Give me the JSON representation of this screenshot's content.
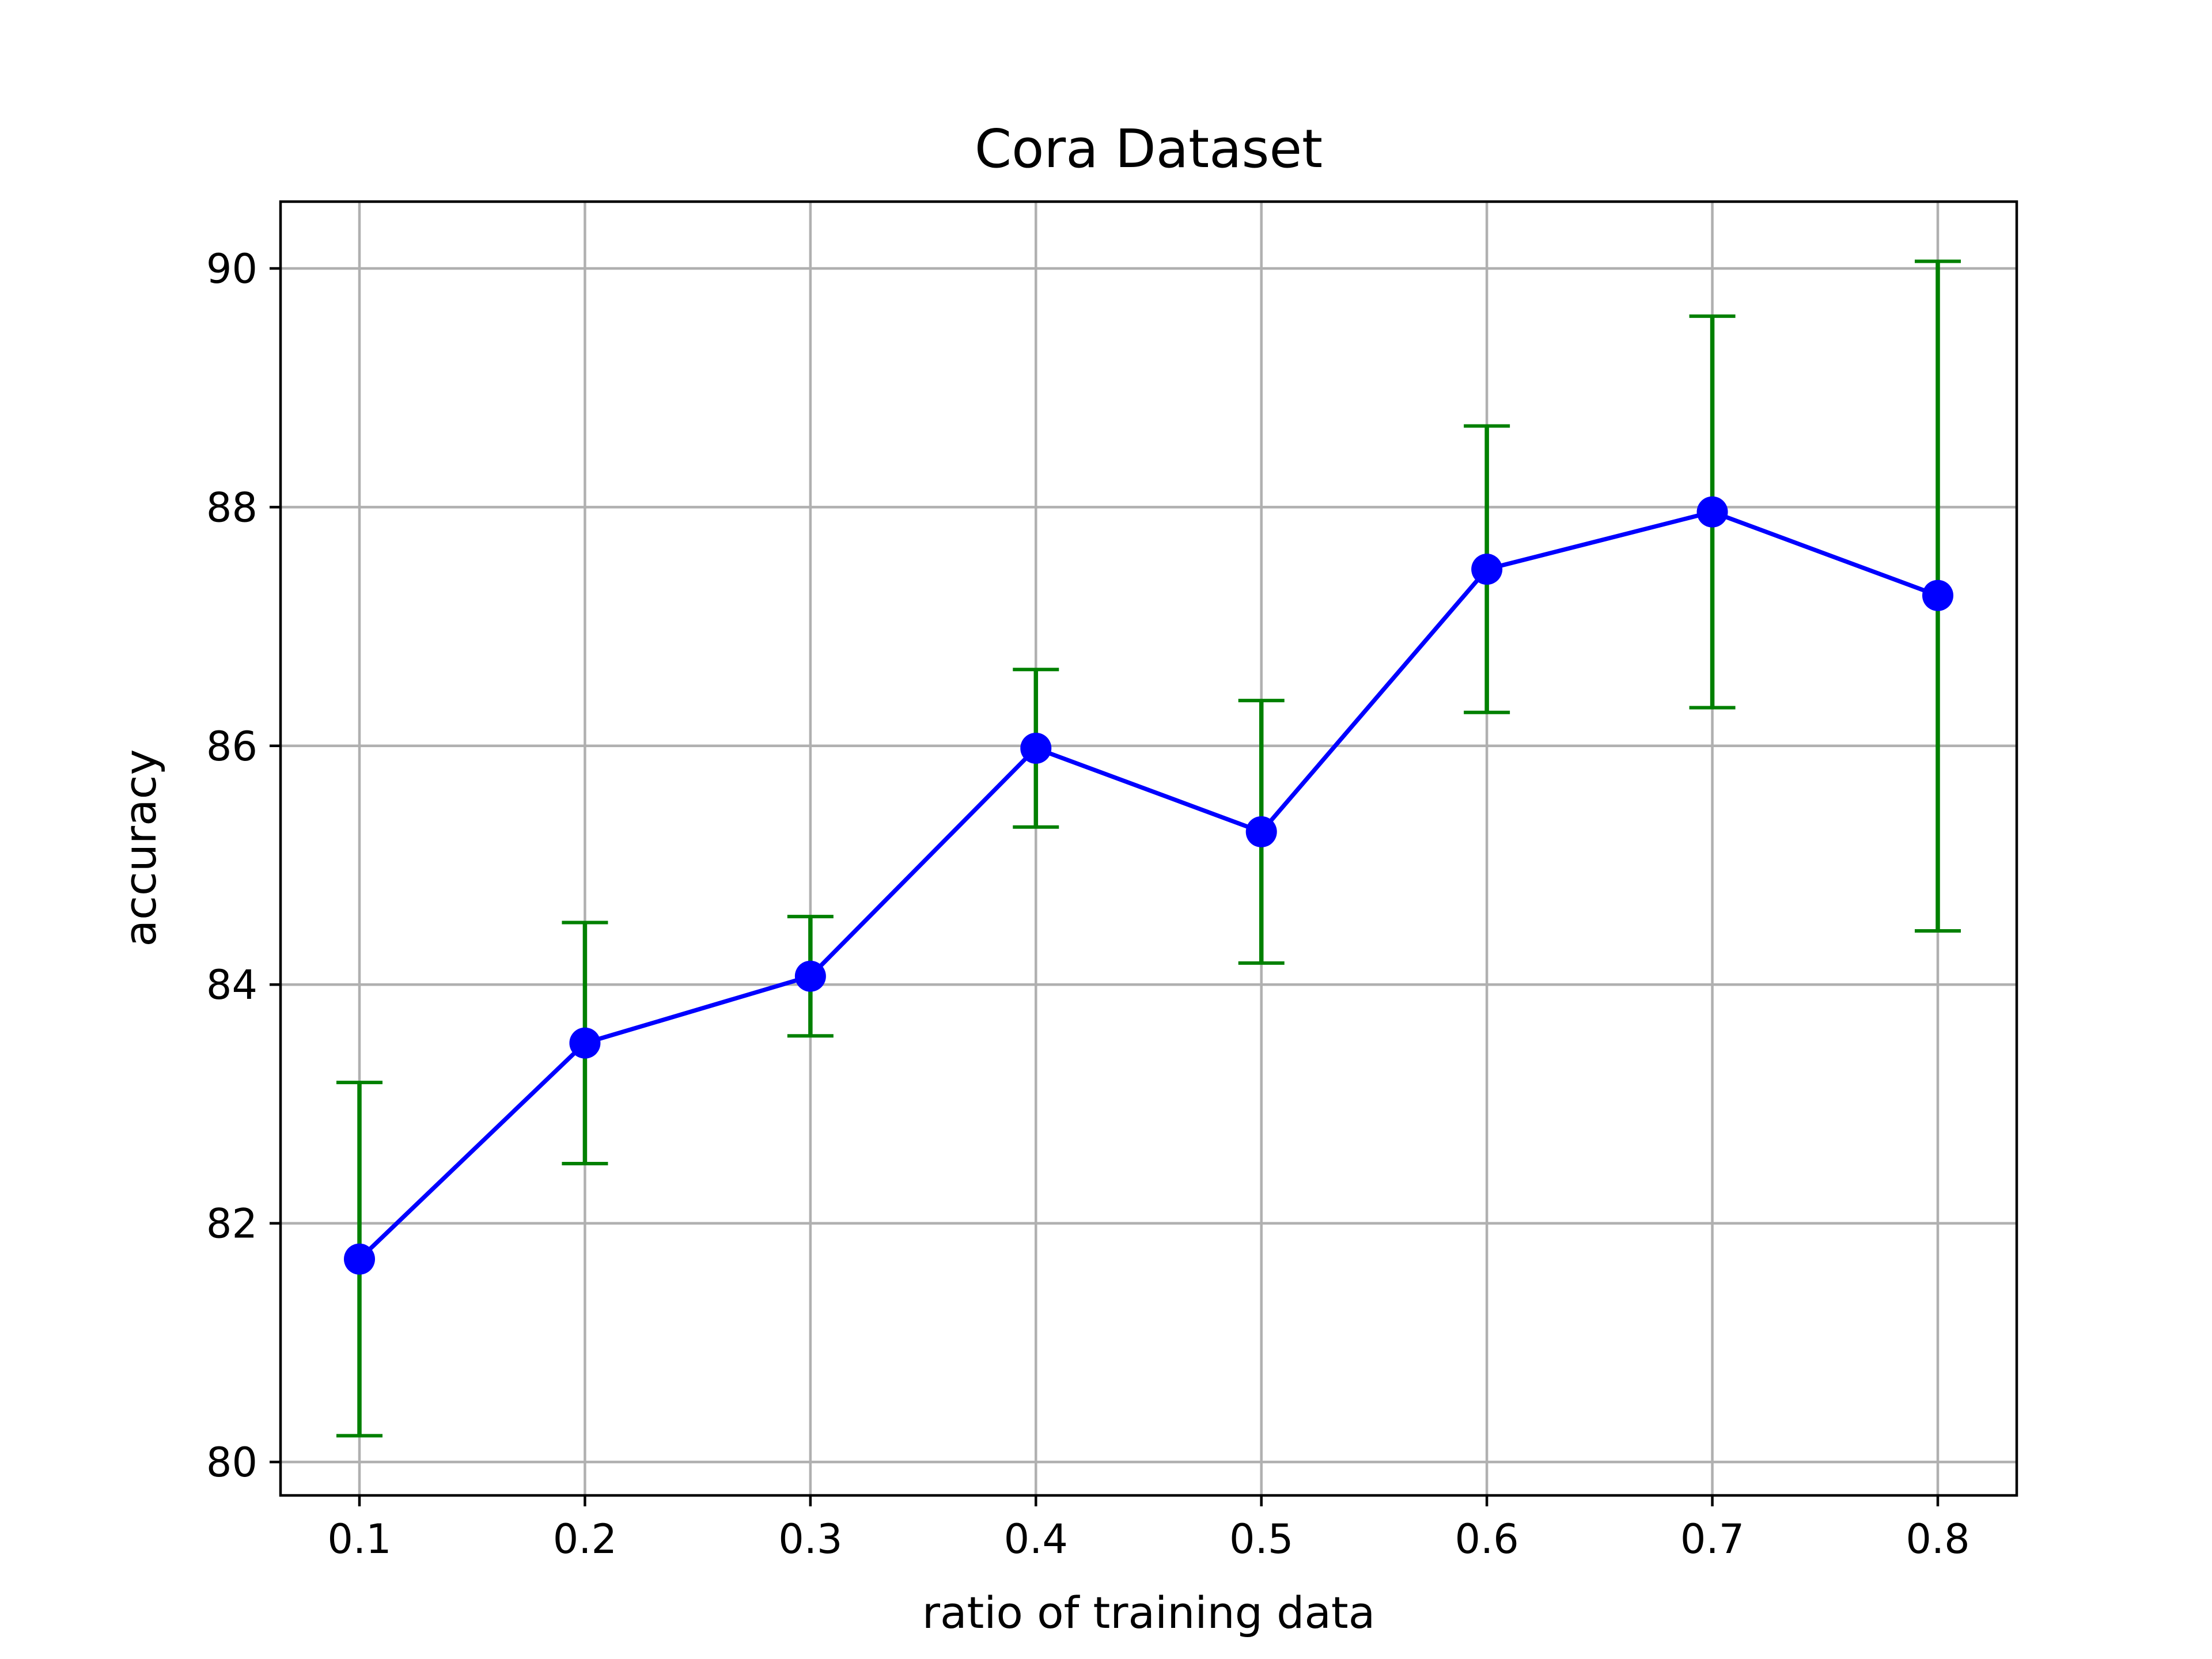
{
  "chart_data": {
    "type": "line",
    "title": "Cora Dataset",
    "xlabel": "ratio of training data",
    "ylabel": "accuracy",
    "x": [
      0.1,
      0.2,
      0.3,
      0.4,
      0.5,
      0.6,
      0.7,
      0.8
    ],
    "x_tick_labels": [
      "0.1",
      "0.2",
      "0.3",
      "0.4",
      "0.5",
      "0.6",
      "0.7",
      "0.8"
    ],
    "y_ticks": [
      80,
      82,
      84,
      86,
      88,
      90
    ],
    "y_tick_labels": [
      "80",
      "82",
      "84",
      "86",
      "88",
      "90"
    ],
    "xlim": [
      0.065,
      0.835
    ],
    "ylim": [
      79.72,
      90.56
    ],
    "grid": true,
    "series": [
      {
        "values": [
          81.7,
          83.51,
          84.07,
          85.98,
          85.28,
          87.48,
          87.96,
          87.26
        ],
        "error_low": [
          80.22,
          82.5,
          83.57,
          85.32,
          84.18,
          86.28,
          86.32,
          84.45
        ],
        "error_high": [
          83.18,
          84.52,
          84.57,
          86.64,
          86.38,
          88.68,
          89.6,
          90.06
        ],
        "line_color": "#0000ff",
        "marker_color": "#0000ff",
        "error_color": "#008000"
      }
    ],
    "grid_color": "#b0b0b0",
    "axes_color": "#000000"
  }
}
